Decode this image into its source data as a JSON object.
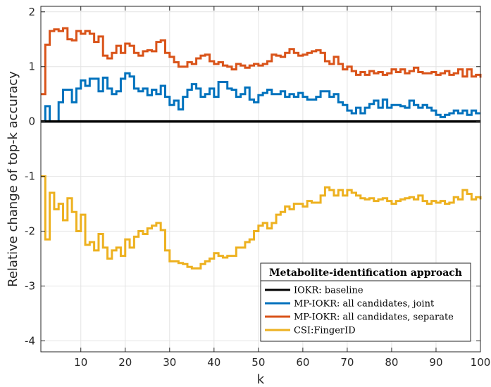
{
  "chart_data": {
    "type": "line",
    "title": "",
    "xlabel": "k",
    "ylabel": "Relative change of top-k accuracy",
    "xlim": [
      1,
      100
    ],
    "ylim": [
      -4.2,
      2.1
    ],
    "xticks": [
      10,
      20,
      30,
      40,
      50,
      60,
      70,
      80,
      90,
      100
    ],
    "yticks": [
      2,
      1,
      0,
      -1,
      -2,
      -3,
      -4
    ],
    "xtick_labels": [
      "10",
      "20",
      "30",
      "40",
      "50",
      "60",
      "70",
      "80",
      "90",
      "100"
    ],
    "ytick_labels": [
      "2",
      "1",
      "0",
      "-1",
      "-2",
      "-3",
      "-4"
    ],
    "grid": true,
    "step": true,
    "legend": {
      "title": "Metabolite-identification approach",
      "placement": "bottom-right"
    },
    "series": [
      {
        "name": "IOKR: baseline",
        "color": "#000000",
        "values": [
          0,
          0,
          0,
          0,
          0,
          0,
          0,
          0,
          0,
          0,
          0,
          0,
          0,
          0,
          0,
          0,
          0,
          0,
          0,
          0,
          0,
          0,
          0,
          0,
          0,
          0,
          0,
          0,
          0,
          0,
          0,
          0,
          0,
          0,
          0,
          0,
          0,
          0,
          0,
          0,
          0,
          0,
          0,
          0,
          0,
          0,
          0,
          0,
          0,
          0,
          0,
          0,
          0,
          0,
          0,
          0,
          0,
          0,
          0,
          0,
          0,
          0,
          0,
          0,
          0,
          0,
          0,
          0,
          0,
          0,
          0,
          0,
          0,
          0,
          0,
          0,
          0,
          0,
          0,
          0,
          0,
          0,
          0,
          0,
          0,
          0,
          0,
          0,
          0,
          0,
          0,
          0,
          0,
          0,
          0,
          0,
          0,
          0,
          0,
          0
        ]
      },
      {
        "name": "MP-IOKR: all candidates, joint",
        "color": "#0072BD",
        "values": [
          0.0,
          0.28,
          0.0,
          0.0,
          0.35,
          0.58,
          0.58,
          0.35,
          0.6,
          0.75,
          0.65,
          0.78,
          0.78,
          0.55,
          0.8,
          0.6,
          0.5,
          0.55,
          0.78,
          0.88,
          0.82,
          0.6,
          0.55,
          0.6,
          0.48,
          0.58,
          0.5,
          0.65,
          0.45,
          0.3,
          0.38,
          0.22,
          0.45,
          0.58,
          0.68,
          0.6,
          0.45,
          0.5,
          0.6,
          0.45,
          0.72,
          0.72,
          0.6,
          0.58,
          0.45,
          0.5,
          0.62,
          0.4,
          0.35,
          0.48,
          0.52,
          0.58,
          0.5,
          0.5,
          0.55,
          0.45,
          0.5,
          0.45,
          0.52,
          0.45,
          0.4,
          0.4,
          0.45,
          0.55,
          0.55,
          0.45,
          0.5,
          0.35,
          0.3,
          0.2,
          0.15,
          0.25,
          0.15,
          0.25,
          0.32,
          0.38,
          0.25,
          0.4,
          0.25,
          0.3,
          0.3,
          0.28,
          0.25,
          0.38,
          0.3,
          0.25,
          0.3,
          0.25,
          0.2,
          0.12,
          0.08,
          0.12,
          0.15,
          0.2,
          0.15,
          0.2,
          0.12,
          0.2,
          0.15,
          0.15
        ]
      },
      {
        "name": "MP-IOKR: all candidates, separate",
        "color": "#D95319",
        "values": [
          0.5,
          1.4,
          1.65,
          1.68,
          1.65,
          1.7,
          1.5,
          1.48,
          1.65,
          1.6,
          1.65,
          1.6,
          1.45,
          1.55,
          1.2,
          1.15,
          1.25,
          1.38,
          1.25,
          1.42,
          1.38,
          1.25,
          1.2,
          1.28,
          1.3,
          1.28,
          1.45,
          1.48,
          1.25,
          1.18,
          1.08,
          1.0,
          1.0,
          1.08,
          1.05,
          1.15,
          1.2,
          1.22,
          1.1,
          1.05,
          1.08,
          1.02,
          1.0,
          0.95,
          1.05,
          1.02,
          0.98,
          1.02,
          1.05,
          1.02,
          1.05,
          1.1,
          1.22,
          1.2,
          1.18,
          1.25,
          1.32,
          1.25,
          1.2,
          1.22,
          1.25,
          1.28,
          1.3,
          1.25,
          1.1,
          1.05,
          1.18,
          1.05,
          0.95,
          1.0,
          0.92,
          0.85,
          0.9,
          0.85,
          0.92,
          0.88,
          0.9,
          0.85,
          0.88,
          0.95,
          0.9,
          0.95,
          0.88,
          0.92,
          0.98,
          0.9,
          0.88,
          0.88,
          0.9,
          0.85,
          0.88,
          0.92,
          0.85,
          0.88,
          0.95,
          0.82,
          0.95,
          0.82,
          0.85,
          0.8
        ]
      },
      {
        "name": "CSI:FingerID",
        "color": "#EDB120",
        "values": [
          -1.0,
          -2.15,
          -1.3,
          -1.6,
          -1.5,
          -1.8,
          -1.4,
          -1.65,
          -2.0,
          -1.7,
          -2.25,
          -2.2,
          -2.35,
          -2.05,
          -2.3,
          -2.5,
          -2.35,
          -2.3,
          -2.45,
          -2.15,
          -2.3,
          -2.1,
          -2.0,
          -2.05,
          -1.95,
          -1.9,
          -1.85,
          -1.98,
          -2.35,
          -2.55,
          -2.55,
          -2.58,
          -2.6,
          -2.65,
          -2.68,
          -2.68,
          -2.6,
          -2.55,
          -2.5,
          -2.4,
          -2.45,
          -2.48,
          -2.45,
          -2.45,
          -2.3,
          -2.3,
          -2.2,
          -2.15,
          -2.0,
          -1.9,
          -1.85,
          -1.95,
          -1.85,
          -1.7,
          -1.65,
          -1.55,
          -1.6,
          -1.5,
          -1.5,
          -1.55,
          -1.45,
          -1.48,
          -1.48,
          -1.35,
          -1.2,
          -1.25,
          -1.35,
          -1.25,
          -1.35,
          -1.25,
          -1.3,
          -1.35,
          -1.4,
          -1.42,
          -1.4,
          -1.45,
          -1.42,
          -1.4,
          -1.45,
          -1.5,
          -1.45,
          -1.42,
          -1.4,
          -1.38,
          -1.42,
          -1.35,
          -1.45,
          -1.5,
          -1.45,
          -1.48,
          -1.45,
          -1.5,
          -1.48,
          -1.38,
          -1.42,
          -1.25,
          -1.32,
          -1.42,
          -1.38,
          -1.42
        ]
      }
    ]
  }
}
